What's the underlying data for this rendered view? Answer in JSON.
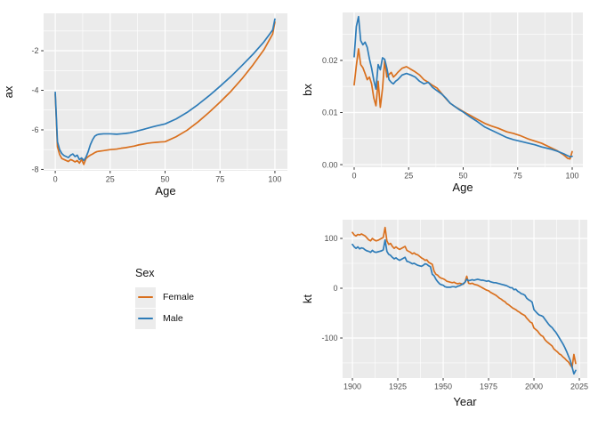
{
  "style": {
    "background": "#FFFFFF",
    "panel_bg": "#EBEBEB",
    "grid": "#FFFFFF",
    "tick": "#333333",
    "tick_label": "#4D4D4D",
    "axis_title": "#111111",
    "legend_key_bg": "#ECECEC"
  },
  "colors": {
    "Female": "#D9701E",
    "Male": "#2E7CB8"
  },
  "legend": {
    "title": "Sex",
    "items": [
      {
        "label": "Female",
        "color": "Female"
      },
      {
        "label": "Male",
        "color": "Male"
      }
    ]
  },
  "chart_data": [
    {
      "id": "ax",
      "type": "line",
      "xlabel": "Age",
      "ylabel": "ax",
      "xlim": [
        -5.3,
        105.7
      ],
      "ylim": [
        -8.07,
        -0.11
      ],
      "grid": true,
      "xticks": {
        "values": [
          0,
          25,
          50,
          75,
          100
        ],
        "labels": [
          "0",
          "25",
          "50",
          "75",
          "100"
        ]
      },
      "yticks": {
        "values": [
          -2,
          -4,
          -6,
          -8
        ],
        "labels": [
          "-2",
          "-4",
          "-6",
          "-8"
        ]
      },
      "series": [
        {
          "name": "Female",
          "color": "Female",
          "x": [
            0,
            1,
            2,
            3,
            4,
            5,
            6,
            7,
            8,
            9,
            10,
            11,
            12,
            13,
            14,
            15,
            16,
            17,
            18,
            19,
            20,
            22,
            25,
            28,
            30,
            32,
            34,
            36,
            38,
            40,
            42,
            44,
            46,
            48,
            50,
            55,
            60,
            65,
            70,
            75,
            80,
            85,
            90,
            95,
            98,
            99,
            100
          ],
          "y": [
            -4.2,
            -6.85,
            -7.25,
            -7.45,
            -7.5,
            -7.55,
            -7.6,
            -7.5,
            -7.55,
            -7.62,
            -7.55,
            -7.68,
            -7.5,
            -7.75,
            -7.45,
            -7.35,
            -7.28,
            -7.22,
            -7.15,
            -7.1,
            -7.08,
            -7.05,
            -7.0,
            -6.97,
            -6.93,
            -6.9,
            -6.86,
            -6.82,
            -6.76,
            -6.72,
            -6.68,
            -6.65,
            -6.63,
            -6.61,
            -6.6,
            -6.35,
            -6.02,
            -5.6,
            -5.12,
            -4.6,
            -4.05,
            -3.42,
            -2.72,
            -1.95,
            -1.35,
            -1.15,
            -0.55
          ]
        },
        {
          "name": "Male",
          "color": "Male",
          "x": [
            0,
            1,
            2,
            3,
            4,
            5,
            6,
            7,
            8,
            9,
            10,
            11,
            12,
            13,
            14,
            15,
            16,
            17,
            18,
            19,
            20,
            22,
            25,
            28,
            30,
            32,
            34,
            36,
            38,
            40,
            42,
            44,
            46,
            48,
            50,
            55,
            60,
            65,
            70,
            75,
            80,
            85,
            90,
            95,
            98,
            99,
            100
          ],
          "y": [
            -4.1,
            -6.6,
            -7.0,
            -7.2,
            -7.3,
            -7.35,
            -7.4,
            -7.28,
            -7.22,
            -7.35,
            -7.28,
            -7.5,
            -7.42,
            -7.55,
            -7.38,
            -7.1,
            -6.75,
            -6.5,
            -6.32,
            -6.25,
            -6.22,
            -6.2,
            -6.2,
            -6.22,
            -6.2,
            -6.18,
            -6.15,
            -6.1,
            -6.04,
            -5.98,
            -5.92,
            -5.86,
            -5.8,
            -5.75,
            -5.7,
            -5.45,
            -5.12,
            -4.72,
            -4.28,
            -3.8,
            -3.3,
            -2.75,
            -2.18,
            -1.55,
            -1.1,
            -0.95,
            -0.4
          ]
        }
      ]
    },
    {
      "id": "bx",
      "type": "line",
      "xlabel": "Age",
      "ylabel": "bx",
      "xlim": [
        -5.3,
        104.9
      ],
      "ylim": [
        -0.0005,
        0.0292
      ],
      "grid": true,
      "xticks": {
        "values": [
          0,
          25,
          50,
          75,
          100
        ],
        "labels": [
          "0",
          "25",
          "50",
          "75",
          "100"
        ]
      },
      "yticks": {
        "values": [
          0,
          0.01,
          0.02
        ],
        "labels": [
          "0.00",
          "0.01",
          "0.02"
        ]
      },
      "series": [
        {
          "name": "Female",
          "color": "Female",
          "x": [
            0,
            1,
            2,
            3,
            4,
            5,
            6,
            7,
            8,
            9,
            10,
            11,
            12,
            13,
            14,
            15,
            16,
            17,
            18,
            19,
            20,
            22,
            24,
            26,
            28,
            30,
            32,
            34,
            36,
            38,
            40,
            42,
            44,
            46,
            48,
            50,
            53,
            56,
            60,
            63,
            66,
            70,
            73,
            76,
            80,
            83,
            86,
            90,
            93,
            96,
            98,
            99,
            100
          ],
          "y": [
            0.0153,
            0.019,
            0.0222,
            0.0192,
            0.0186,
            0.0175,
            0.0163,
            0.0168,
            0.0155,
            0.0128,
            0.0113,
            0.016,
            0.011,
            0.0146,
            0.02,
            0.0168,
            0.0173,
            0.0177,
            0.0168,
            0.0172,
            0.0177,
            0.0185,
            0.0188,
            0.0183,
            0.0178,
            0.0172,
            0.0163,
            0.0158,
            0.0152,
            0.0147,
            0.0137,
            0.0127,
            0.0118,
            0.0112,
            0.0107,
            0.0102,
            0.0095,
            0.0088,
            0.0079,
            0.0074,
            0.007,
            0.0063,
            0.006,
            0.0056,
            0.0049,
            0.0045,
            0.0041,
            0.0033,
            0.0027,
            0.0019,
            0.0012,
            0.0011,
            0.0025
          ]
        },
        {
          "name": "Male",
          "color": "Male",
          "x": [
            0,
            1,
            2,
            3,
            4,
            5,
            6,
            7,
            8,
            9,
            10,
            11,
            12,
            13,
            14,
            15,
            16,
            17,
            18,
            19,
            20,
            22,
            24,
            26,
            28,
            30,
            32,
            34,
            36,
            38,
            40,
            42,
            44,
            46,
            48,
            50,
            53,
            56,
            60,
            63,
            66,
            70,
            73,
            76,
            80,
            83,
            86,
            90,
            93,
            96,
            98,
            99,
            100
          ],
          "y": [
            0.0207,
            0.0265,
            0.0284,
            0.0238,
            0.023,
            0.0235,
            0.0225,
            0.0203,
            0.0185,
            0.0162,
            0.0145,
            0.0192,
            0.0182,
            0.0205,
            0.0202,
            0.0185,
            0.0163,
            0.0158,
            0.0155,
            0.016,
            0.0163,
            0.0172,
            0.0175,
            0.0172,
            0.0168,
            0.016,
            0.0155,
            0.0158,
            0.0148,
            0.0142,
            0.0136,
            0.0128,
            0.0118,
            0.0112,
            0.0106,
            0.0101,
            0.0092,
            0.0084,
            0.0072,
            0.0066,
            0.006,
            0.0052,
            0.0048,
            0.0045,
            0.0041,
            0.0038,
            0.0034,
            0.003,
            0.0026,
            0.0021,
            0.0017,
            0.0015,
            0.0016
          ]
        }
      ]
    },
    {
      "id": "kt",
      "type": "line",
      "xlabel": "Year",
      "ylabel": "kt",
      "xlim": [
        1894.6,
        2029.4
      ],
      "ylim": [
        -180.4,
        137.5
      ],
      "grid": true,
      "xticks": {
        "values": [
          1900,
          1925,
          1950,
          1975,
          2000,
          2025
        ],
        "labels": [
          "1900",
          "1925",
          "1950",
          "1975",
          "2000",
          "2025"
        ]
      },
      "yticks": {
        "values": [
          100,
          0,
          -100
        ],
        "labels": [
          "100",
          "0",
          "-100"
        ]
      },
      "series": [
        {
          "name": "Female",
          "color": "Female",
          "x_range": [
            1900,
            2023
          ],
          "y": [
            112,
            107,
            105,
            108,
            107,
            109,
            107,
            105,
            101,
            97,
            95,
            100,
            97,
            95,
            96,
            98,
            100,
            102,
            122,
            95,
            88,
            90,
            84,
            80,
            83,
            80,
            78,
            80,
            82,
            84,
            76,
            74,
            72,
            69,
            71,
            68,
            67,
            64,
            61,
            59,
            56,
            57,
            52,
            50,
            48,
            34,
            28,
            26,
            22,
            20,
            19,
            17,
            14,
            13,
            12,
            11,
            12,
            10,
            9,
            10,
            9,
            8,
            12,
            24,
            10,
            9,
            10,
            8,
            7,
            6,
            4,
            2,
            0,
            -2,
            -4,
            -5,
            -8,
            -10,
            -12,
            -14,
            -17,
            -20,
            -22,
            -25,
            -27,
            -31,
            -33,
            -36,
            -39,
            -41,
            -43,
            -46,
            -48,
            -51,
            -53,
            -55,
            -60,
            -64,
            -68,
            -70,
            -80,
            -83,
            -86,
            -91,
            -95,
            -97,
            -103,
            -107,
            -110,
            -113,
            -116,
            -122,
            -125,
            -128,
            -132,
            -134,
            -138,
            -141,
            -145,
            -148,
            -154,
            -159,
            -133,
            -151
          ]
        },
        {
          "name": "Male",
          "color": "Male",
          "x_range": [
            1900,
            2023
          ],
          "y": [
            88,
            83,
            80,
            83,
            79,
            81,
            80,
            77,
            75,
            74,
            72,
            76,
            73,
            72,
            73,
            74,
            75,
            77,
            97,
            74,
            68,
            66,
            62,
            59,
            61,
            58,
            56,
            58,
            60,
            62,
            54,
            53,
            51,
            49,
            50,
            48,
            46,
            45,
            44,
            46,
            49,
            48,
            45,
            43,
            28,
            25,
            18,
            13,
            9,
            7,
            6,
            3,
            2,
            2,
            2,
            3,
            3,
            2,
            4,
            5,
            7,
            9,
            12,
            18,
            15,
            16,
            17,
            16,
            17,
            18,
            17,
            16,
            16,
            15,
            14,
            15,
            13,
            12,
            11,
            11,
            10,
            9,
            8,
            7,
            6,
            5,
            3,
            1,
            1,
            -3,
            -2,
            -6,
            -8,
            -11,
            -12,
            -14,
            -20,
            -23,
            -25,
            -28,
            -43,
            -47,
            -51,
            -54,
            -55,
            -57,
            -62,
            -67,
            -72,
            -76,
            -79,
            -84,
            -88,
            -94,
            -100,
            -106,
            -112,
            -119,
            -127,
            -136,
            -145,
            -158,
            -172,
            -165
          ]
        }
      ]
    }
  ]
}
